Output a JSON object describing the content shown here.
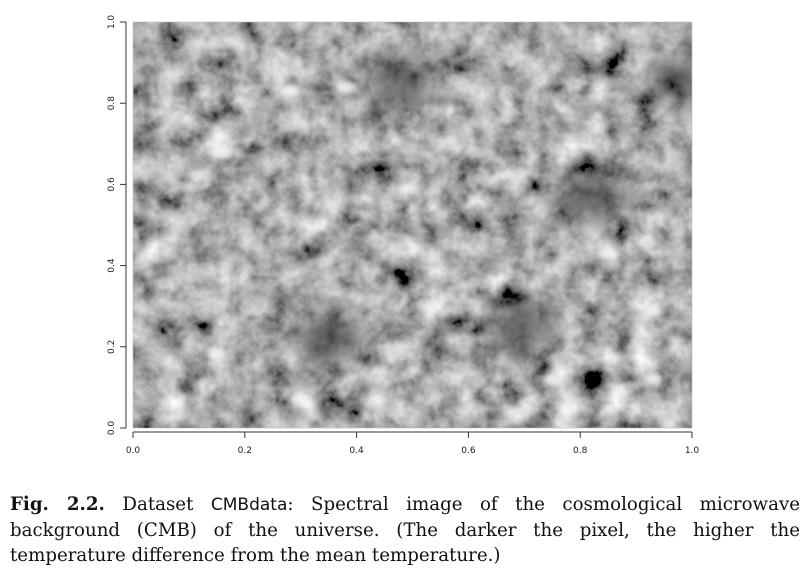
{
  "chart_data": {
    "type": "heatmap",
    "title": "",
    "xlabel": "",
    "ylabel": "",
    "xlim": [
      0,
      1
    ],
    "ylim": [
      0,
      1
    ],
    "x_ticks": [
      "0.0",
      "0.2",
      "0.4",
      "0.6",
      "0.8",
      "1.0"
    ],
    "y_ticks": [
      "0.0",
      "0.2",
      "0.4",
      "0.6",
      "0.8",
      "1.0"
    ],
    "colormap": "grayscale",
    "grid": false,
    "bright_spots": [
      {
        "x": 0.28,
        "y": 0.83
      },
      {
        "x": 0.38,
        "y": 0.84
      },
      {
        "x": 0.16,
        "y": 0.68
      },
      {
        "x": 0.85,
        "y": 0.43
      },
      {
        "x": 0.93,
        "y": 0.29
      },
      {
        "x": 0.15,
        "y": 0.18
      },
      {
        "x": 0.3,
        "y": 0.07
      },
      {
        "x": 0.75,
        "y": 0.12
      },
      {
        "x": 0.78,
        "y": 0.05
      },
      {
        "x": 0.93,
        "y": 0.12
      }
    ],
    "dark_regions": [
      {
        "x": 0.48,
        "y": 0.85
      },
      {
        "x": 0.82,
        "y": 0.57
      },
      {
        "x": 0.98,
        "y": 0.86
      },
      {
        "x": 0.35,
        "y": 0.22
      },
      {
        "x": 0.7,
        "y": 0.25
      }
    ]
  },
  "caption": {
    "label": "Fig. 2.2.",
    "text_before": "Dataset",
    "dataset_name": "CMBdata",
    "text_after": ": Spectral image of the cosmological microwave background (CMB) of the universe. (The darker the pixel, the higher the temperature difference from the mean temperature.)"
  }
}
